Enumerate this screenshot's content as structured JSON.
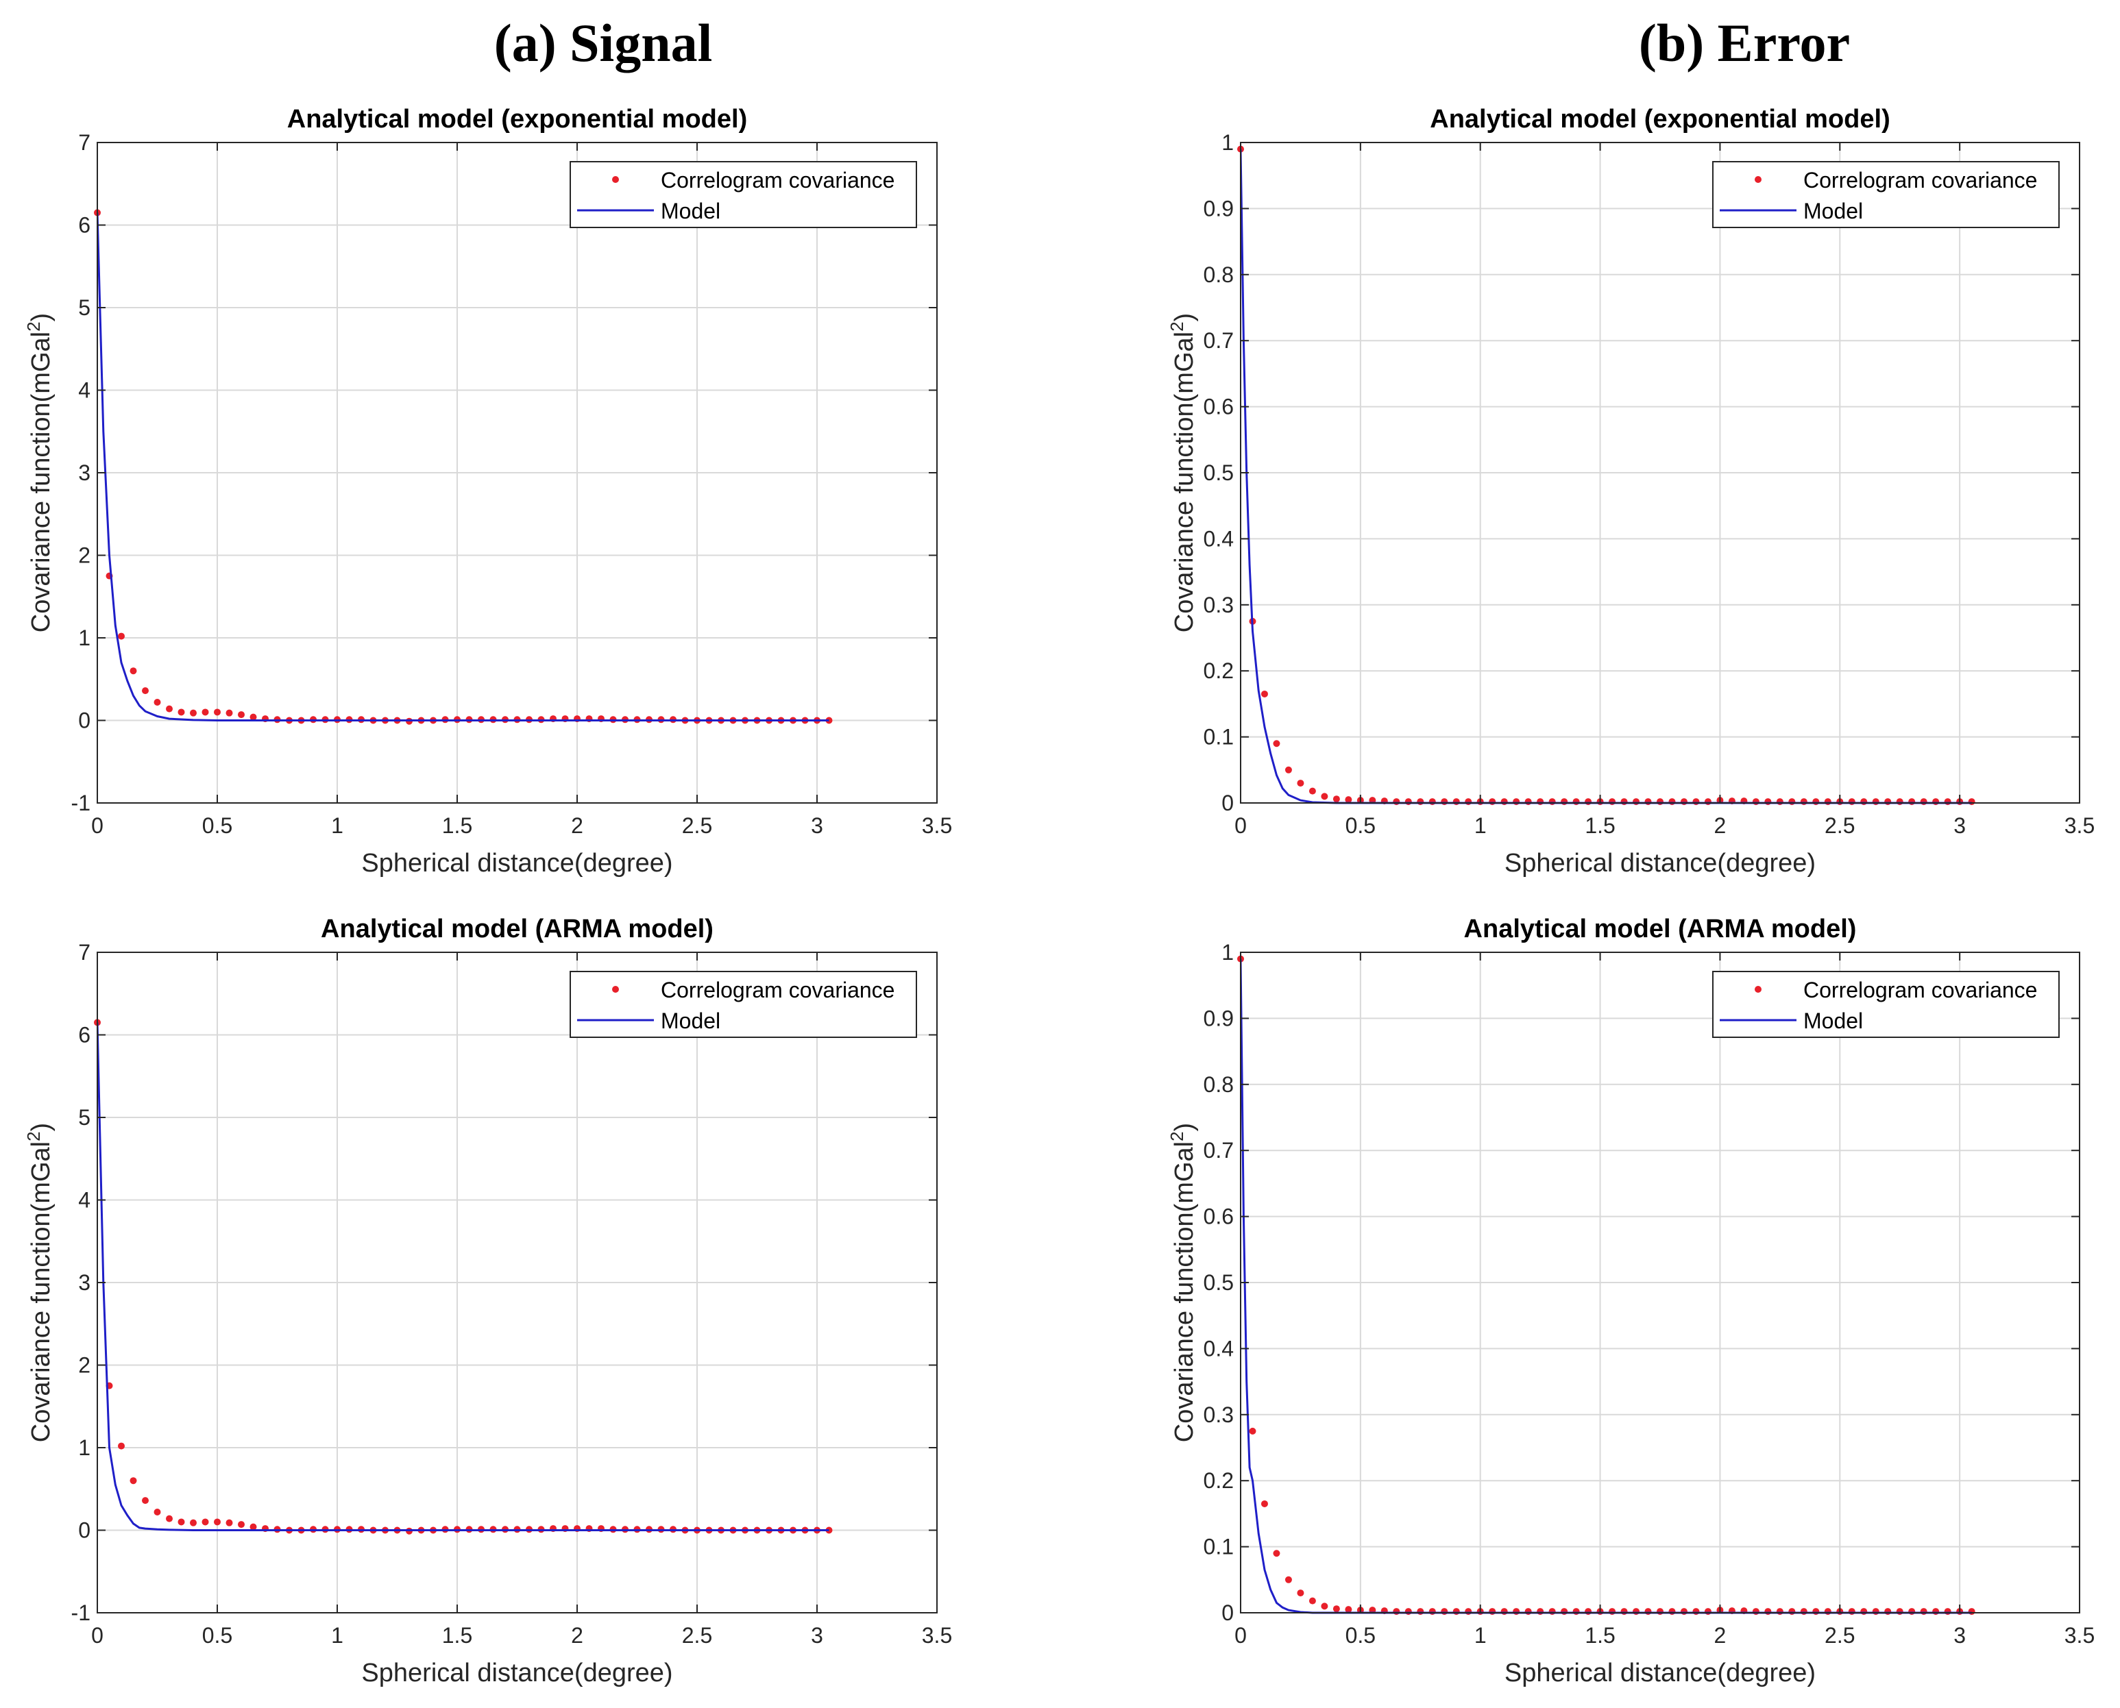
{
  "column_titles": [
    "(a)  Signal",
    "(b)  Error"
  ],
  "colors": {
    "dots": "#e8202a",
    "model": "#1f1fc8"
  },
  "chart_data": [
    {
      "type": "scatter",
      "title": "Analytical model (exponential model)",
      "xlabel": "Spherical distance(degree)",
      "ylabel": "Covariance function(mGal",
      "ylabel_sup": "2",
      "ylabel_end": ")",
      "xlim": [
        0,
        3.5
      ],
      "ylim": [
        -1,
        7
      ],
      "xticks": [
        0,
        0.5,
        1,
        1.5,
        2,
        2.5,
        3,
        3.5
      ],
      "xtick_labels": [
        "0",
        "0.5",
        "1",
        "1.5",
        "2",
        "2.5",
        "3",
        "3.5"
      ],
      "yticks": [
        -1,
        0,
        1,
        2,
        3,
        4,
        5,
        6,
        7
      ],
      "ytick_labels": [
        "-1",
        "0",
        "1",
        "2",
        "3",
        "4",
        "5",
        "6",
        "7"
      ],
      "grid": true,
      "legend_position": "top-right",
      "series": [
        {
          "name": "Correlogram covariance",
          "style": "dots",
          "x": [
            0,
            0.05,
            0.1,
            0.15,
            0.2,
            0.25,
            0.3,
            0.35,
            0.4,
            0.45,
            0.5,
            0.55,
            0.6,
            0.65,
            0.7,
            0.75,
            0.8,
            0.85,
            0.9,
            0.95,
            1.0,
            1.05,
            1.1,
            1.15,
            1.2,
            1.25,
            1.3,
            1.35,
            1.4,
            1.45,
            1.5,
            1.55,
            1.6,
            1.65,
            1.7,
            1.75,
            1.8,
            1.85,
            1.9,
            1.95,
            2.0,
            2.05,
            2.1,
            2.15,
            2.2,
            2.25,
            2.3,
            2.35,
            2.4,
            2.45,
            2.5,
            2.55,
            2.6,
            2.65,
            2.7,
            2.75,
            2.8,
            2.85,
            2.9,
            2.95,
            3.0,
            3.05
          ],
          "y": [
            6.15,
            1.75,
            1.02,
            0.6,
            0.36,
            0.22,
            0.14,
            0.1,
            0.09,
            0.1,
            0.1,
            0.09,
            0.07,
            0.04,
            0.02,
            0.01,
            0.0,
            0.0,
            0.01,
            0.01,
            0.01,
            0.01,
            0.01,
            0.0,
            0.0,
            0.0,
            -0.01,
            0.0,
            0.0,
            0.01,
            0.01,
            0.01,
            0.01,
            0.01,
            0.01,
            0.01,
            0.01,
            0.01,
            0.02,
            0.02,
            0.02,
            0.02,
            0.02,
            0.01,
            0.01,
            0.01,
            0.01,
            0.01,
            0.01,
            0.0,
            0.0,
            0.0,
            0.0,
            0.0,
            0.0,
            0.0,
            0.0,
            0.0,
            0.0,
            0.0,
            0.0,
            0.0
          ]
        },
        {
          "name": "Model",
          "style": "line",
          "x": [
            0,
            0.025,
            0.05,
            0.075,
            0.1,
            0.125,
            0.15,
            0.175,
            0.2,
            0.25,
            0.3,
            0.4,
            0.5,
            0.75,
            1.0,
            1.5,
            2.0,
            2.5,
            3.05
          ],
          "y": [
            6.15,
            3.5,
            2.0,
            1.15,
            0.7,
            0.48,
            0.3,
            0.18,
            0.11,
            0.05,
            0.02,
            0.005,
            0.0,
            0.0,
            0.0,
            0.0,
            0.0,
            0.0,
            0.0
          ]
        }
      ]
    },
    {
      "type": "scatter",
      "title": "Analytical model (exponential model)",
      "xlabel": "Spherical distance(degree)",
      "ylabel": "Covariance function(mGal",
      "ylabel_sup": "2",
      "ylabel_end": ")",
      "xlim": [
        0,
        3.5
      ],
      "ylim": [
        0,
        1
      ],
      "xticks": [
        0,
        0.5,
        1,
        1.5,
        2,
        2.5,
        3,
        3.5
      ],
      "xtick_labels": [
        "0",
        "0.5",
        "1",
        "1.5",
        "2",
        "2.5",
        "3",
        "3.5"
      ],
      "yticks": [
        0,
        0.1,
        0.2,
        0.3,
        0.4,
        0.5,
        0.6,
        0.7,
        0.8,
        0.9,
        1
      ],
      "ytick_labels": [
        "0",
        "0.1",
        "0.2",
        "0.3",
        "0.4",
        "0.5",
        "0.6",
        "0.7",
        "0.8",
        "0.9",
        "1"
      ],
      "grid": true,
      "legend_position": "top-right",
      "series": [
        {
          "name": "Correlogram covariance",
          "style": "dots",
          "x": [
            0,
            0.05,
            0.1,
            0.15,
            0.2,
            0.25,
            0.3,
            0.35,
            0.4,
            0.45,
            0.5,
            0.55,
            0.6,
            0.65,
            0.7,
            0.75,
            0.8,
            0.85,
            0.9,
            0.95,
            1.0,
            1.05,
            1.1,
            1.15,
            1.2,
            1.25,
            1.3,
            1.35,
            1.4,
            1.45,
            1.5,
            1.55,
            1.6,
            1.65,
            1.7,
            1.75,
            1.8,
            1.85,
            1.9,
            1.95,
            2.0,
            2.05,
            2.1,
            2.15,
            2.2,
            2.25,
            2.3,
            2.35,
            2.4,
            2.45,
            2.5,
            2.55,
            2.6,
            2.65,
            2.7,
            2.75,
            2.8,
            2.85,
            2.9,
            2.95,
            3.0,
            3.05
          ],
          "y": [
            0.99,
            0.275,
            0.165,
            0.09,
            0.05,
            0.03,
            0.018,
            0.01,
            0.006,
            0.005,
            0.004,
            0.004,
            0.003,
            0.002,
            0.002,
            0.002,
            0.002,
            0.002,
            0.002,
            0.002,
            0.002,
            0.002,
            0.002,
            0.002,
            0.002,
            0.002,
            0.002,
            0.002,
            0.002,
            0.002,
            0.002,
            0.002,
            0.002,
            0.002,
            0.002,
            0.002,
            0.002,
            0.002,
            0.002,
            0.002,
            0.004,
            0.003,
            0.003,
            0.002,
            0.002,
            0.002,
            0.002,
            0.002,
            0.002,
            0.002,
            0.002,
            0.002,
            0.002,
            0.002,
            0.002,
            0.002,
            0.002,
            0.002,
            0.002,
            0.002,
            0.002,
            0.002
          ]
        },
        {
          "name": "Model",
          "style": "line",
          "x": [
            0,
            0.0125,
            0.025,
            0.0375,
            0.05,
            0.075,
            0.1,
            0.125,
            0.15,
            0.175,
            0.2,
            0.25,
            0.3,
            0.4,
            0.5,
            1.0,
            2.0,
            3.05
          ],
          "y": [
            0.99,
            0.7,
            0.5,
            0.36,
            0.26,
            0.17,
            0.115,
            0.075,
            0.042,
            0.022,
            0.012,
            0.004,
            0.001,
            0.0,
            0.0,
            0.0,
            0.0,
            0.0
          ]
        }
      ]
    },
    {
      "type": "scatter",
      "title": "Analytical model (ARMA model)",
      "xlabel": "Spherical distance(degree)",
      "ylabel": "Covariance function(mGal",
      "ylabel_sup": "2",
      "ylabel_end": ")",
      "xlim": [
        0,
        3.5
      ],
      "ylim": [
        -1,
        7
      ],
      "xticks": [
        0,
        0.5,
        1,
        1.5,
        2,
        2.5,
        3,
        3.5
      ],
      "xtick_labels": [
        "0",
        "0.5",
        "1",
        "1.5",
        "2",
        "2.5",
        "3",
        "3.5"
      ],
      "yticks": [
        -1,
        0,
        1,
        2,
        3,
        4,
        5,
        6,
        7
      ],
      "ytick_labels": [
        "-1",
        "0",
        "1",
        "2",
        "3",
        "4",
        "5",
        "6",
        "7"
      ],
      "grid": true,
      "legend_position": "top-right",
      "series": [
        {
          "name": "Correlogram covariance",
          "style": "dots",
          "x": [
            0,
            0.05,
            0.1,
            0.15,
            0.2,
            0.25,
            0.3,
            0.35,
            0.4,
            0.45,
            0.5,
            0.55,
            0.6,
            0.65,
            0.7,
            0.75,
            0.8,
            0.85,
            0.9,
            0.95,
            1.0,
            1.05,
            1.1,
            1.15,
            1.2,
            1.25,
            1.3,
            1.35,
            1.4,
            1.45,
            1.5,
            1.55,
            1.6,
            1.65,
            1.7,
            1.75,
            1.8,
            1.85,
            1.9,
            1.95,
            2.0,
            2.05,
            2.1,
            2.15,
            2.2,
            2.25,
            2.3,
            2.35,
            2.4,
            2.45,
            2.5,
            2.55,
            2.6,
            2.65,
            2.7,
            2.75,
            2.8,
            2.85,
            2.9,
            2.95,
            3.0,
            3.05
          ],
          "y": [
            6.15,
            1.75,
            1.02,
            0.6,
            0.36,
            0.22,
            0.14,
            0.1,
            0.09,
            0.1,
            0.1,
            0.09,
            0.07,
            0.04,
            0.02,
            0.01,
            0.0,
            0.0,
            0.01,
            0.01,
            0.01,
            0.01,
            0.01,
            0.0,
            0.0,
            0.0,
            -0.01,
            0.0,
            0.0,
            0.01,
            0.01,
            0.01,
            0.01,
            0.01,
            0.01,
            0.01,
            0.01,
            0.01,
            0.02,
            0.02,
            0.02,
            0.02,
            0.02,
            0.01,
            0.01,
            0.01,
            0.01,
            0.01,
            0.01,
            0.0,
            0.0,
            0.0,
            0.0,
            0.0,
            0.0,
            0.0,
            0.0,
            0.0,
            0.0,
            0.0,
            0.0,
            0.0
          ]
        },
        {
          "name": "Model",
          "style": "line",
          "x": [
            0,
            0.025,
            0.05,
            0.075,
            0.1,
            0.125,
            0.15,
            0.175,
            0.2,
            0.25,
            0.3,
            0.4,
            0.5,
            0.75,
            1.0,
            1.5,
            2.0,
            2.5,
            3.05
          ],
          "y": [
            6.15,
            3.0,
            1.0,
            0.55,
            0.3,
            0.18,
            0.08,
            0.03,
            0.02,
            0.01,
            0.005,
            0.0,
            0.0,
            0.0,
            0.0,
            0.0,
            0.0,
            0.0,
            0.0
          ]
        }
      ]
    },
    {
      "type": "scatter",
      "title": "Analytical model (ARMA model)",
      "xlabel": "Spherical distance(degree)",
      "ylabel": "Covariance function(mGal",
      "ylabel_sup": "2",
      "ylabel_end": ")",
      "xlim": [
        0,
        3.5
      ],
      "ylim": [
        0,
        1
      ],
      "xticks": [
        0,
        0.5,
        1,
        1.5,
        2,
        2.5,
        3,
        3.5
      ],
      "xtick_labels": [
        "0",
        "0.5",
        "1",
        "1.5",
        "2",
        "2.5",
        "3",
        "3.5"
      ],
      "yticks": [
        0,
        0.1,
        0.2,
        0.3,
        0.4,
        0.5,
        0.6,
        0.7,
        0.8,
        0.9,
        1
      ],
      "ytick_labels": [
        "0",
        "0.1",
        "0.2",
        "0.3",
        "0.4",
        "0.5",
        "0.6",
        "0.7",
        "0.8",
        "0.9",
        "1"
      ],
      "grid": true,
      "legend_position": "top-right",
      "series": [
        {
          "name": "Correlogram covariance",
          "style": "dots",
          "x": [
            0,
            0.05,
            0.1,
            0.15,
            0.2,
            0.25,
            0.3,
            0.35,
            0.4,
            0.45,
            0.5,
            0.55,
            0.6,
            0.65,
            0.7,
            0.75,
            0.8,
            0.85,
            0.9,
            0.95,
            1.0,
            1.05,
            1.1,
            1.15,
            1.2,
            1.25,
            1.3,
            1.35,
            1.4,
            1.45,
            1.5,
            1.55,
            1.6,
            1.65,
            1.7,
            1.75,
            1.8,
            1.85,
            1.9,
            1.95,
            2.0,
            2.05,
            2.1,
            2.15,
            2.2,
            2.25,
            2.3,
            2.35,
            2.4,
            2.45,
            2.5,
            2.55,
            2.6,
            2.65,
            2.7,
            2.75,
            2.8,
            2.85,
            2.9,
            2.95,
            3.0,
            3.05
          ],
          "y": [
            0.99,
            0.275,
            0.165,
            0.09,
            0.05,
            0.03,
            0.018,
            0.01,
            0.006,
            0.005,
            0.004,
            0.004,
            0.003,
            0.002,
            0.002,
            0.002,
            0.002,
            0.002,
            0.002,
            0.002,
            0.002,
            0.002,
            0.002,
            0.002,
            0.002,
            0.002,
            0.002,
            0.002,
            0.002,
            0.002,
            0.002,
            0.002,
            0.002,
            0.002,
            0.002,
            0.002,
            0.002,
            0.002,
            0.002,
            0.002,
            0.004,
            0.003,
            0.003,
            0.002,
            0.002,
            0.002,
            0.002,
            0.002,
            0.002,
            0.002,
            0.002,
            0.002,
            0.002,
            0.002,
            0.002,
            0.002,
            0.002,
            0.002,
            0.002,
            0.002,
            0.002,
            0.002
          ]
        },
        {
          "name": "Model",
          "style": "line",
          "x": [
            0,
            0.0125,
            0.025,
            0.0375,
            0.05,
            0.075,
            0.1,
            0.125,
            0.15,
            0.175,
            0.2,
            0.25,
            0.3,
            0.4,
            0.5,
            1.0,
            2.0,
            3.05
          ],
          "y": [
            0.99,
            0.6,
            0.35,
            0.22,
            0.2,
            0.12,
            0.065,
            0.035,
            0.015,
            0.008,
            0.004,
            0.001,
            0.0,
            0.0,
            0.0,
            0.0,
            0.0,
            0.0
          ]
        }
      ]
    }
  ]
}
